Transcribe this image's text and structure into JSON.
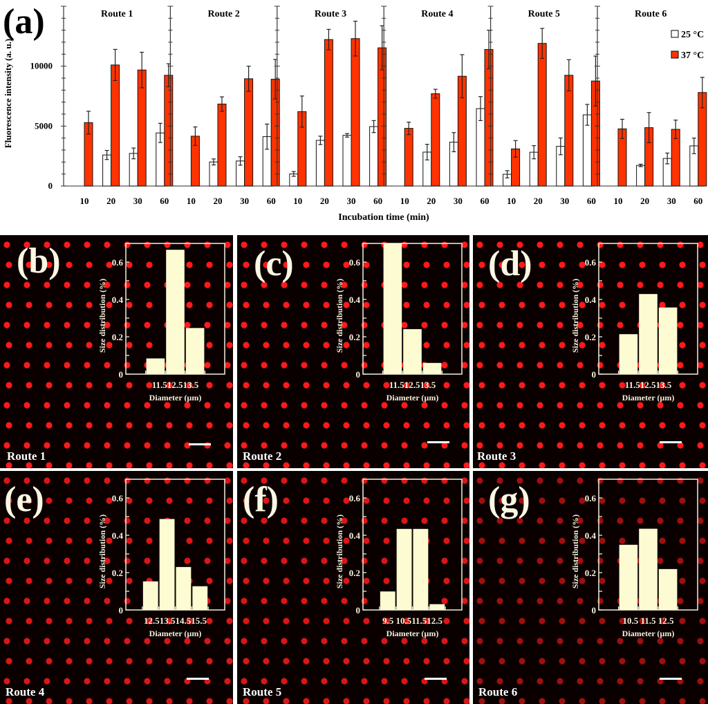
{
  "figure_label": "(a)",
  "chart_data": [
    {
      "id": "a",
      "type": "bar",
      "title": "",
      "panel_label": "(a)",
      "ylabel": "Fluorescence intensity (a. u.)",
      "xlabel": "Incubation time (min)",
      "ylim": [
        0,
        15000
      ],
      "yticks_major": [
        0,
        5000,
        10000
      ],
      "yticks_minor_step": 1000,
      "grid": false,
      "legend": {
        "placement": "top-right",
        "entries": [
          {
            "name": "25 °C",
            "color": "#ffffff"
          },
          {
            "name": "37 °C",
            "color": "#ff3300"
          }
        ]
      },
      "categories": [
        "10",
        "20",
        "30",
        "60"
      ],
      "groups": [
        {
          "name": "Route 1",
          "series": [
            {
              "name": "25 °C",
              "values": [
                null,
                2590,
                2720,
                4430
              ],
              "errors": [
                null,
                380,
                450,
                800
              ]
            },
            {
              "name": "37 °C",
              "values": [
                5290,
                10100,
                9680,
                9240
              ],
              "errors": [
                950,
                1300,
                1480,
                960
              ]
            }
          ]
        },
        {
          "name": "Route 2",
          "series": [
            {
              "name": "25 °C",
              "values": [
                null,
                2010,
                2090,
                4120
              ],
              "errors": [
                null,
                250,
                350,
                1050
              ]
            },
            {
              "name": "37 °C",
              "values": [
                4160,
                6840,
                8950,
                8910
              ],
              "errors": [
                770,
                600,
                1050,
                1650
              ]
            }
          ]
        },
        {
          "name": "Route 3",
          "series": [
            {
              "name": "25 °C",
              "values": [
                1010,
                3810,
                4230,
                4960
              ],
              "errors": [
                200,
                350,
                150,
                500
              ]
            },
            {
              "name": "37 °C",
              "values": [
                6210,
                12220,
                12300,
                11530
              ],
              "errors": [
                1300,
                850,
                1450,
                1840
              ]
            }
          ]
        },
        {
          "name": "Route 4",
          "series": [
            {
              "name": "25 °C",
              "values": [
                null,
                2830,
                3660,
                6460
              ],
              "errors": [
                null,
                650,
                800,
                1000
              ]
            },
            {
              "name": "37 °C",
              "values": [
                4810,
                7700,
                9160,
                11390
              ],
              "errors": [
                520,
                370,
                1800,
                1610
              ]
            }
          ]
        },
        {
          "name": "Route 5",
          "series": [
            {
              "name": "25 °C",
              "values": [
                980,
                2820,
                3310,
                5940
              ],
              "errors": [
                300,
                550,
                700,
                870
              ]
            },
            {
              "name": "37 °C",
              "values": [
                3100,
                11900,
                9240,
                8760
              ],
              "errors": [
                690,
                1250,
                1300,
                2080
              ]
            }
          ]
        },
        {
          "name": "Route 6",
          "series": [
            {
              "name": "25 °C",
              "values": [
                null,
                1720,
                2300,
                3350
              ],
              "errors": [
                null,
                100,
                450,
                650
              ]
            },
            {
              "name": "37 °C",
              "values": [
                4770,
                4870,
                4730,
                7800
              ],
              "errors": [
                800,
                1260,
                770,
                1270
              ]
            }
          ]
        }
      ]
    },
    {
      "id": "b",
      "type": "bar",
      "panel_label": "(b)",
      "route": "Route 1",
      "ylabel": "Size distribution (%)",
      "xlabel": "Diameter (µm)",
      "ylim": [
        0,
        0.7
      ],
      "yticks": [
        "0",
        "0.2",
        "0.4",
        "0.6"
      ],
      "categories": [
        "11.5",
        "12.5",
        "13.5"
      ],
      "tick_labels": "11.512.513.5",
      "values": [
        0.084,
        0.666,
        0.247
      ]
    },
    {
      "id": "c",
      "type": "bar",
      "panel_label": "(c)",
      "route": "Route 2",
      "ylabel": "Size distribution (%)",
      "xlabel": "Diameter (µm)",
      "ylim": [
        0,
        0.7
      ],
      "yticks": [
        "0",
        "0.2",
        "0.4",
        "0.6"
      ],
      "categories": [
        "11.5",
        "12.5",
        "13.5"
      ],
      "tick_labels": "11.512.513.5",
      "values": [
        0.7,
        0.241,
        0.06
      ]
    },
    {
      "id": "d",
      "type": "bar",
      "panel_label": "(d)",
      "route": "Route 3",
      "ylabel": "Size distribution (%)",
      "xlabel": "Diameter (µm)",
      "ylim": [
        0,
        0.7
      ],
      "yticks": [
        "0",
        "0.2",
        "0.4",
        "0.6"
      ],
      "categories": [
        "11.5",
        "12.5",
        "13.5"
      ],
      "tick_labels": "11.512.513.5",
      "values": [
        0.214,
        0.429,
        0.357
      ]
    },
    {
      "id": "e",
      "type": "bar",
      "panel_label": "(e)",
      "route": "Route 4",
      "ylabel": "Size distribution (%)",
      "xlabel": "Diameter (µm)",
      "ylim": [
        0,
        0.7
      ],
      "yticks": [
        "0",
        "0.2",
        "0.4",
        "0.6"
      ],
      "categories": [
        "12.5",
        "13.5",
        "14.5",
        "15.5"
      ],
      "tick_labels": "12.513.514.515.5",
      "values": [
        0.153,
        0.487,
        0.23,
        0.127
      ]
    },
    {
      "id": "f",
      "type": "bar",
      "panel_label": "(f)",
      "route": "Route 5",
      "ylabel": "Size distribution (%)",
      "xlabel": "Diameter (µm)",
      "ylim": [
        0,
        0.7
      ],
      "yticks": [
        "0",
        "0.2",
        "0.4",
        "0.6"
      ],
      "categories": [
        "9.5",
        "10.5",
        "11.5",
        "12.5"
      ],
      "tick_labels": "9.5 10.511.512.5",
      "values": [
        0.099,
        0.434,
        0.434,
        0.031
      ]
    },
    {
      "id": "g",
      "type": "bar",
      "panel_label": "(g)",
      "route": "Route 6",
      "ylabel": "Size distribution (%)",
      "xlabel": "Diameter (µm)",
      "ylim": [
        0,
        0.7
      ],
      "yticks": [
        "0",
        "0.2",
        "0.4",
        "0.6"
      ],
      "categories": [
        "10.5",
        "11.5",
        "12.5"
      ],
      "tick_labels": "10.5 11.5 12.5",
      "values": [
        0.349,
        0.435,
        0.219
      ]
    }
  ],
  "colors": {
    "warm": "#ff3300",
    "cold": "#ffffff",
    "inset_bar": "#fdfbd2",
    "inset_axis": "#f5f1dc",
    "bead": "#ff1a1a"
  }
}
